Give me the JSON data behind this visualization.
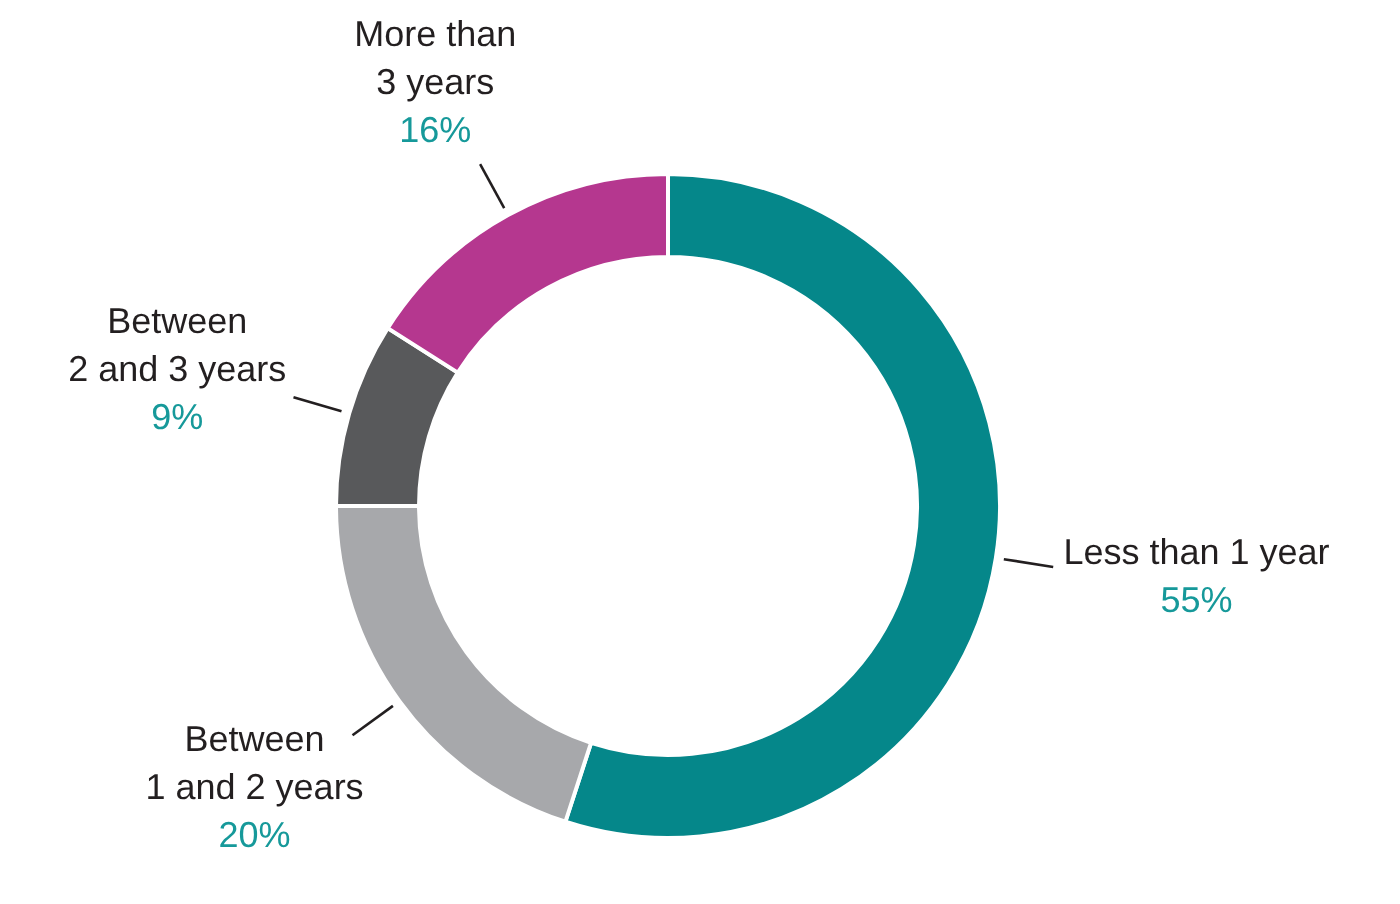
{
  "chart_data": {
    "type": "donut",
    "categories": [
      "Less than 1 year",
      "Between\n1 and 2 years",
      "Between\n2 and 3 years",
      "More than\n3 years"
    ],
    "values": [
      55,
      20,
      9,
      16
    ],
    "colors": [
      "#05878a",
      "#a7a8ab",
      "#58595b",
      "#b5378f"
    ],
    "value_labels": [
      "55%",
      "20%",
      "9%",
      "16%"
    ]
  }
}
